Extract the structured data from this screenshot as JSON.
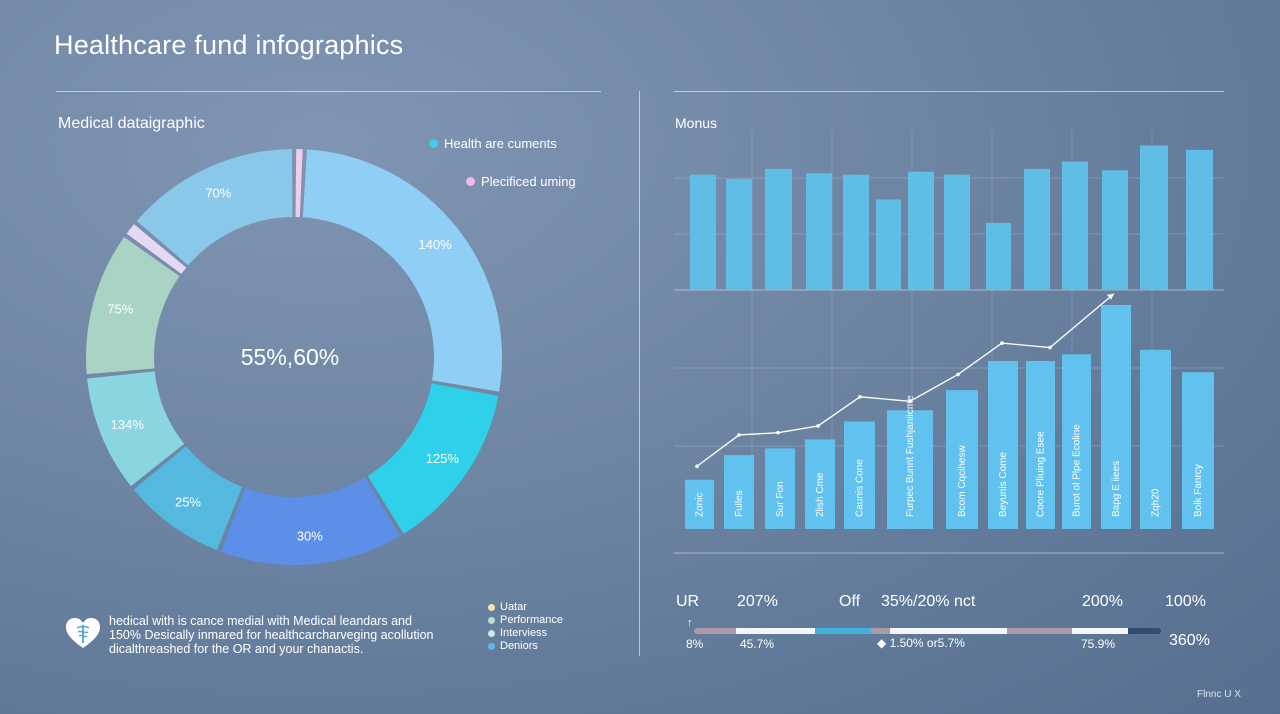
{
  "page": {
    "title": "Healthcare fund infographics",
    "footer_mark": "Flnnc U X"
  },
  "left_panel": {
    "subtitle": "Medical dataigraphic",
    "legend": [
      {
        "label": "Health are cuments",
        "color": "#3ad0ee"
      },
      {
        "label": "Plecificed uming",
        "color": "#f3b8e6"
      }
    ],
    "description": [
      "hedical with is cance medial  with Medical  leandars and",
      "150% Desically inmared for healthcarcharveging acollution",
      "dicalthreashed for the OR and your chanactis."
    ],
    "icon": "heart-caduceus-icon",
    "small_legend": [
      {
        "label": "Uatar",
        "color": "#f4e6a8"
      },
      {
        "label": "Performance",
        "color": "#b5e3c8"
      },
      {
        "label": "Interviess",
        "color": "#c7ecf0"
      },
      {
        "label": "Deniors",
        "color": "#5ab8ea"
      }
    ]
  },
  "right_panel": {
    "subtitle": "Monus",
    "stats_top": [
      "UR",
      "207%",
      "Off",
      "35%/20% nct",
      "200%",
      "100%"
    ],
    "stats_bottom": [
      "8%",
      "45.7%",
      "1.50% or5.7%",
      "75.9%",
      "360%"
    ],
    "progress_segments": [
      {
        "color": "#a99aa8",
        "fraction": 0.09
      },
      {
        "color": "#f4f6fa",
        "fraction": 0.17
      },
      {
        "color": "#44b2d8",
        "fraction": 0.12
      },
      {
        "color": "#a99aa8",
        "fraction": 0.04
      },
      {
        "color": "#f4f6fa",
        "fraction": 0.25
      },
      {
        "color": "#a99aa8",
        "fraction": 0.14
      },
      {
        "color": "#f4f6fa",
        "fraction": 0.12
      },
      {
        "color": "#324d6e",
        "fraction": 0.07
      }
    ]
  },
  "chart_data": [
    {
      "type": "pie",
      "style": "donut",
      "center_label": "55%,60%",
      "slices": [
        {
          "label": "140%",
          "value": 26,
          "color": "#8fcff6"
        },
        {
          "label": "125%",
          "value": 13,
          "color": "#2ed0ea"
        },
        {
          "label": "30%",
          "value": 14,
          "color": "#5d8ee8"
        },
        {
          "label": "25%",
          "value": 8,
          "color": "#54b8df"
        },
        {
          "label": "134%",
          "value": 9,
          "color": "#8ad6e0"
        },
        {
          "label": "75%",
          "value": 11,
          "color": "#a9d4c4"
        },
        {
          "label": "",
          "value": 1.2,
          "color": "#e6d8f2"
        },
        {
          "label": "70%",
          "value": 13.3,
          "color": "#89c8e8"
        },
        {
          "label": "",
          "value": 0.8,
          "color": "#f0cde8"
        }
      ]
    },
    {
      "type": "bar",
      "ylim": [
        0,
        100
      ],
      "grid": true,
      "values": [
        79,
        76,
        83,
        80,
        79,
        62,
        81,
        79,
        46,
        83,
        88,
        82,
        99,
        96
      ]
    },
    {
      "type": "bar",
      "ylim": [
        0,
        100
      ],
      "grid": true,
      "categories": [
        "Zonic",
        "Fuiles",
        "Sur Fon",
        "2lish Cme",
        "Caunis Cone",
        "Furpec Bunnt Fushjaniicme",
        "Bcom Cqcihesw",
        "Beyunis Come",
        "Coore Pliuing Esee",
        "Burot ol Plpe Ecoline",
        "Bapg E iiees",
        "Zqh20",
        "Bolk Fanrcy"
      ],
      "values": [
        22,
        33,
        36,
        40,
        48,
        53,
        62,
        75,
        75,
        78,
        100,
        80,
        70
      ],
      "line": {
        "values": [
          28,
          42,
          43,
          46,
          59,
          57,
          69,
          83,
          81,
          105
        ]
      }
    }
  ]
}
